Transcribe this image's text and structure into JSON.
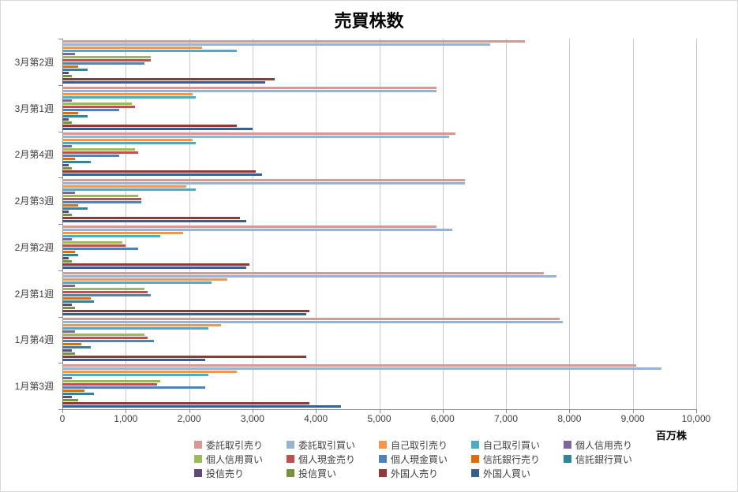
{
  "chart_data": {
    "type": "bar",
    "orientation": "horizontal",
    "title": "売買株数",
    "xlabel": "百万株",
    "xlim": [
      0,
      10000
    ],
    "x_ticks": [
      "0",
      "1,000",
      "2,000",
      "3,000",
      "4,000",
      "5,000",
      "6,000",
      "7,000",
      "8,000",
      "9,000",
      "10,000"
    ],
    "grid": true,
    "legend_position": "bottom",
    "categories": [
      "3月第2週",
      "3月第1週",
      "2月第4週",
      "2月第3週",
      "2月第2週",
      "2月第1週",
      "1月第4週",
      "1月第3週"
    ],
    "series": [
      {
        "name": "委託取引売り",
        "color": "#D99694",
        "values": [
          7300,
          5900,
          6200,
          6350,
          5900,
          7600,
          7850,
          9050
        ]
      },
      {
        "name": "委託取引買い",
        "color": "#95B3D7",
        "values": [
          6750,
          5900,
          6100,
          6350,
          6150,
          7800,
          7900,
          9450
        ]
      },
      {
        "name": "自己取引売り",
        "color": "#F79646",
        "values": [
          2200,
          2050,
          2050,
          1950,
          1900,
          2600,
          2500,
          2750
        ]
      },
      {
        "name": "自己取引買い",
        "color": "#4BACC6",
        "values": [
          2750,
          2100,
          2100,
          2100,
          1550,
          2350,
          2300,
          2300
        ]
      },
      {
        "name": "個人信用売り",
        "color": "#8064A2",
        "values": [
          200,
          150,
          150,
          200,
          150,
          200,
          200,
          150
        ]
      },
      {
        "name": "個人信用買い",
        "color": "#9BBB59",
        "values": [
          1400,
          1100,
          1150,
          1200,
          950,
          1300,
          1300,
          1550
        ]
      },
      {
        "name": "個人現金売り",
        "color": "#C0504D",
        "values": [
          1400,
          1150,
          1200,
          1250,
          1000,
          1350,
          1350,
          1500
        ]
      },
      {
        "name": "個人現金買い",
        "color": "#4F81BD",
        "values": [
          1300,
          900,
          900,
          1250,
          1200,
          1400,
          1450,
          2250
        ]
      },
      {
        "name": "信託銀行売り",
        "color": "#E36C09",
        "values": [
          250,
          250,
          200,
          250,
          200,
          450,
          300,
          350
        ]
      },
      {
        "name": "信託銀行買い",
        "color": "#31859B",
        "values": [
          400,
          400,
          450,
          400,
          250,
          500,
          450,
          500
        ]
      },
      {
        "name": "投信売り",
        "color": "#60497A",
        "values": [
          100,
          100,
          100,
          100,
          100,
          150,
          150,
          150
        ]
      },
      {
        "name": "投信買い",
        "color": "#77933C",
        "values": [
          150,
          150,
          150,
          150,
          150,
          200,
          200,
          250
        ]
      },
      {
        "name": "外国人売り",
        "color": "#953735",
        "values": [
          3350,
          2750,
          3050,
          2800,
          2950,
          3900,
          3850,
          3900
        ]
      },
      {
        "name": "外国人買い",
        "color": "#366092",
        "values": [
          3200,
          3000,
          3150,
          2900,
          2900,
          3850,
          2250,
          4400
        ]
      }
    ]
  }
}
